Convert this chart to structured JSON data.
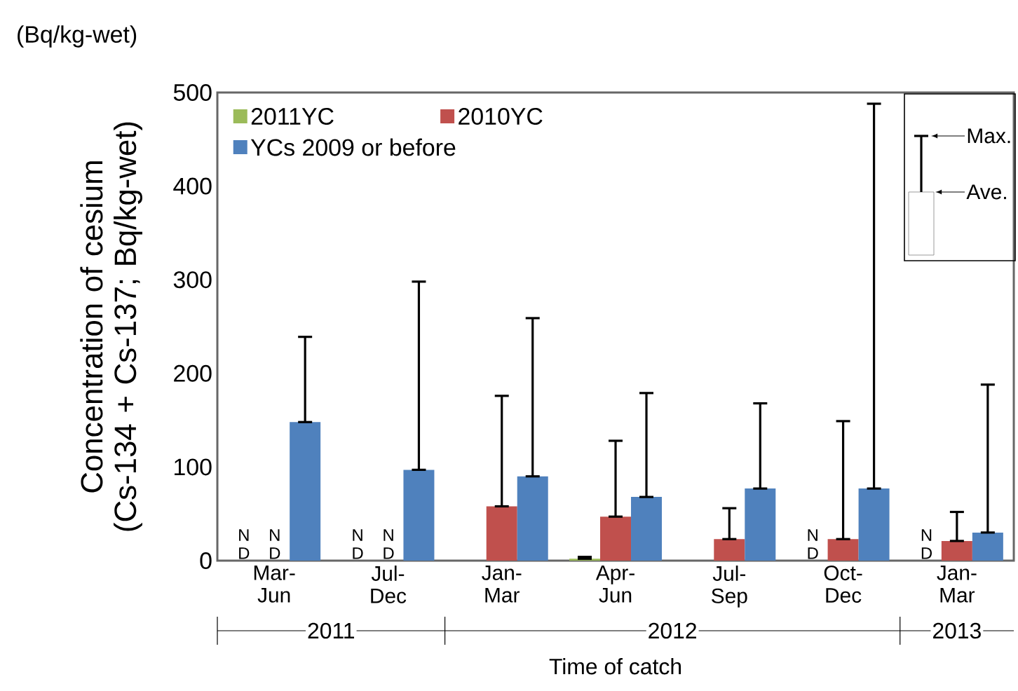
{
  "chart_data": {
    "type": "bar",
    "ylabel": "Concentration of cesium (Cs-134 + Cs-137; Bq/kg-wet)",
    "xlabel": "Time of catch",
    "annotations": [
      "(Bq/kg-wet)",
      "2011",
      "2012",
      "2013",
      "Max.",
      "Ave."
    ],
    "categories": [
      "Mar-Jun",
      "Jul-Dec",
      "Jan-Mar",
      "Apr-Jun",
      "Jul-Sep",
      "Oct-Dec",
      "Jan-Mar"
    ],
    "ylim": [
      0,
      500
    ],
    "yticks": [
      0,
      100,
      200,
      300,
      400,
      500
    ],
    "legend": "top left",
    "series": [
      {
        "name": "2011YC",
        "color": "#9bbb59",
        "values": [
          null,
          null,
          null,
          2,
          null,
          null,
          null
        ],
        "errors": [
          null,
          null,
          null,
          [
            2,
            4
          ],
          null,
          null,
          null
        ],
        "value_labels": [
          "N D",
          "N D",
          null,
          null,
          null,
          "N D",
          "N D"
        ]
      },
      {
        "name": "2010YC",
        "color": "#c0504d",
        "values": [
          null,
          null,
          58,
          47,
          23,
          23,
          21
        ],
        "errors": [
          null,
          null,
          [
            58,
            176
          ],
          [
            47,
            128
          ],
          [
            23,
            56
          ],
          [
            23,
            149
          ],
          [
            21,
            52
          ]
        ],
        "value_labels": [
          "N D",
          "N D",
          null,
          null,
          null,
          null,
          null
        ]
      },
      {
        "name": "YCs 2009 or before",
        "color": "#4f81bd",
        "values": [
          148,
          97,
          90,
          68,
          77,
          77,
          30
        ],
        "errors": [
          [
            148,
            239
          ],
          [
            97,
            298
          ],
          [
            90,
            259
          ],
          [
            68,
            179
          ],
          [
            77,
            168
          ],
          [
            77,
            488
          ],
          [
            30,
            188
          ]
        ]
      }
    ]
  }
}
